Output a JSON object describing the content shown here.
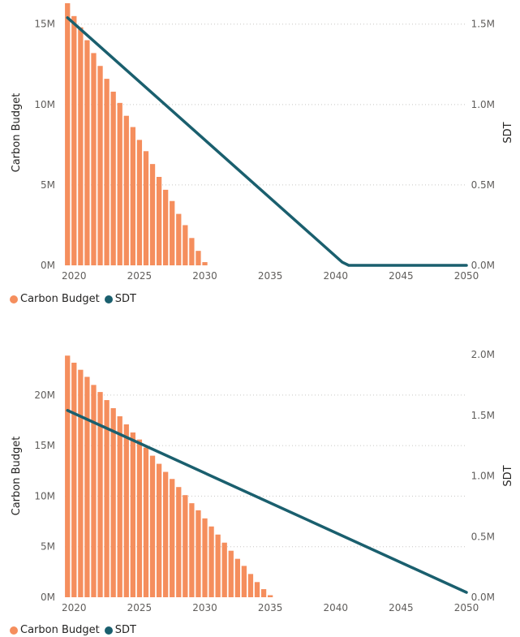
{
  "colors": {
    "bar": "#f58e5d",
    "line": "#1a5f6e"
  },
  "chart_data": [
    {
      "type": "bar",
      "title": "",
      "xlabel": "",
      "ylabel": "Carbon Budget",
      "y2label": "SDT",
      "x_ticks": [
        "2020",
        "2025",
        "2030",
        "2035",
        "2040",
        "2045",
        "2050"
      ],
      "y_ticks": [
        "0M",
        "5M",
        "10M",
        "15M"
      ],
      "y2_ticks": [
        "0.0M",
        "0.5M",
        "1.0M",
        "1.5M"
      ],
      "xlim": [
        2019.3,
        2050
      ],
      "ylim": [
        0,
        16500000
      ],
      "y2lim": [
        0,
        1650000
      ],
      "bar_years": [
        2019.5,
        2020,
        2020.5,
        2021,
        2021.5,
        2022,
        2022.5,
        2023,
        2023.5,
        2024,
        2024.5,
        2025,
        2025.5,
        2026,
        2026.5,
        2027,
        2027.5,
        2028,
        2028.5,
        2029,
        2029.5,
        2030
      ],
      "series": [
        {
          "name": "Carbon Budget",
          "axis": "left",
          "kind": "bar",
          "values": [
            16300000,
            15500000,
            14800000,
            14000000,
            13200000,
            12400000,
            11600000,
            10800000,
            10100000,
            9300000,
            8600000,
            7800000,
            7100000,
            6300000,
            5500000,
            4700000,
            4000000,
            3200000,
            2500000,
            1700000,
            900000,
            200000
          ]
        },
        {
          "name": "SDT",
          "axis": "right",
          "kind": "line",
          "points": [
            [
              2019.5,
              1540000
            ],
            [
              2040.5,
              20000
            ],
            [
              2041,
              0
            ],
            [
              2050,
              0
            ]
          ]
        }
      ],
      "legend": "bottom-left",
      "grid": true
    },
    {
      "type": "bar",
      "title": "",
      "xlabel": "",
      "ylabel": "Carbon Budget",
      "y2label": "SDT",
      "x_ticks": [
        "2020",
        "2025",
        "2030",
        "2035",
        "2040",
        "2045",
        "2050"
      ],
      "y_ticks": [
        "0M",
        "5M",
        "10M",
        "15M",
        "20M"
      ],
      "y2_ticks": [
        "0.0M",
        "0.5M",
        "1.0M",
        "1.5M",
        "2.0M"
      ],
      "xlim": [
        2019.3,
        2050
      ],
      "ylim": [
        0,
        24000000
      ],
      "y2lim": [
        0,
        2000000
      ],
      "bar_years": [
        2019.5,
        2020,
        2020.5,
        2021,
        2021.5,
        2022,
        2022.5,
        2023,
        2023.5,
        2024,
        2024.5,
        2025,
        2025.5,
        2026,
        2026.5,
        2027,
        2027.5,
        2028,
        2028.5,
        2029,
        2029.5,
        2030,
        2030.5,
        2031,
        2031.5,
        2032,
        2032.5,
        2033,
        2033.5,
        2034,
        2034.5,
        2035
      ],
      "series": [
        {
          "name": "Carbon Budget",
          "axis": "left",
          "kind": "bar",
          "values": [
            23900000,
            23200000,
            22500000,
            21800000,
            21000000,
            20300000,
            19500000,
            18700000,
            17900000,
            17100000,
            16300000,
            15600000,
            14800000,
            14000000,
            13200000,
            12400000,
            11700000,
            10900000,
            10100000,
            9300000,
            8600000,
            7800000,
            7000000,
            6200000,
            5400000,
            4600000,
            3800000,
            3100000,
            2300000,
            1500000,
            800000,
            200000
          ]
        },
        {
          "name": "SDT",
          "axis": "right",
          "kind": "line",
          "points": [
            [
              2019.5,
              1540000
            ],
            [
              2050,
              40000
            ]
          ]
        }
      ],
      "legend": "bottom-left",
      "grid": true
    }
  ]
}
